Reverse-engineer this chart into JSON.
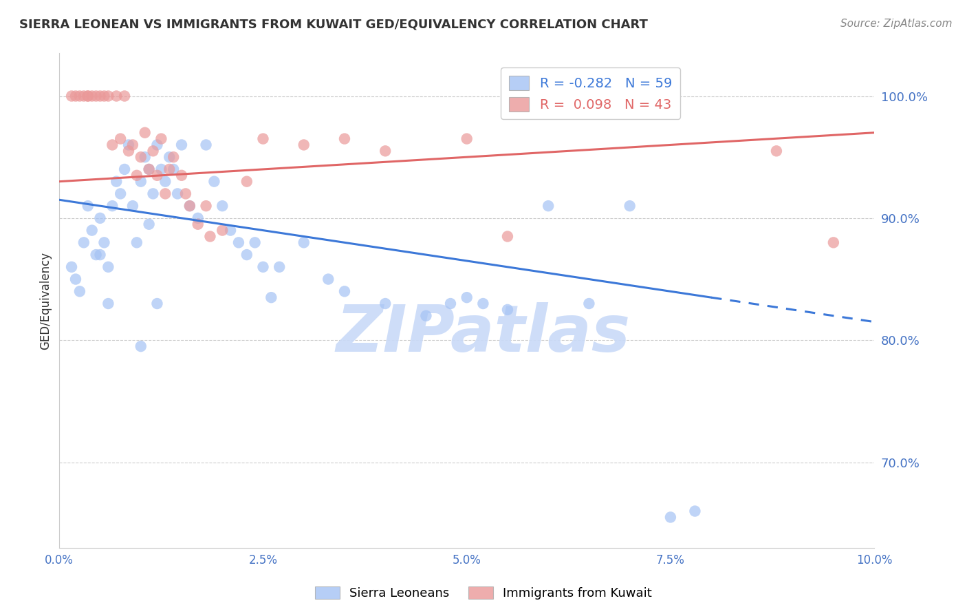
{
  "title": "SIERRA LEONEAN VS IMMIGRANTS FROM KUWAIT GED/EQUIVALENCY CORRELATION CHART",
  "source": "Source: ZipAtlas.com",
  "ylabel": "GED/Equivalency",
  "legend_label_blue": "Sierra Leoneans",
  "legend_label_pink": "Immigrants from Kuwait",
  "R_blue": -0.282,
  "N_blue": 59,
  "R_pink": 0.098,
  "N_pink": 43,
  "xlim": [
    0.0,
    10.0
  ],
  "ylim": [
    63.0,
    103.5
  ],
  "yticks": [
    70.0,
    80.0,
    90.0,
    100.0
  ],
  "xticks": [
    0.0,
    2.5,
    5.0,
    7.5,
    10.0
  ],
  "blue_color": "#a4c2f4",
  "pink_color": "#ea9999",
  "blue_line_color": "#3c78d8",
  "pink_line_color": "#e06666",
  "axis_color": "#4472c4",
  "grid_color": "#cccccc",
  "background_color": "#ffffff",
  "watermark": "ZIPatlas",
  "watermark_color": "#c9daf8",
  "blue_line_x0": 0.0,
  "blue_line_y0": 91.5,
  "blue_line_x1": 8.0,
  "blue_line_y1": 83.5,
  "blue_dash_x0": 8.0,
  "blue_dash_y0": 83.5,
  "blue_dash_x1": 10.0,
  "blue_dash_y1": 81.5,
  "pink_line_x0": 0.0,
  "pink_line_y0": 93.0,
  "pink_line_x1": 10.0,
  "pink_line_y1": 97.0,
  "blue_points_x": [
    0.15,
    0.2,
    0.25,
    0.3,
    0.35,
    0.4,
    0.45,
    0.5,
    0.55,
    0.6,
    0.65,
    0.7,
    0.75,
    0.8,
    0.85,
    0.9,
    0.95,
    1.0,
    1.05,
    1.1,
    1.15,
    1.2,
    1.25,
    1.3,
    1.35,
    1.4,
    1.45,
    1.5,
    1.6,
    1.7,
    1.8,
    1.9,
    2.0,
    2.1,
    2.2,
    2.4,
    2.5,
    2.7,
    3.0,
    3.3,
    3.5,
    4.0,
    4.5,
    4.8,
    5.0,
    5.2,
    5.5,
    6.0,
    6.5,
    7.0,
    7.5,
    2.3,
    2.6,
    0.5,
    0.6,
    1.0,
    1.1,
    1.2,
    7.8
  ],
  "blue_points_y": [
    86.0,
    85.0,
    84.0,
    88.0,
    91.0,
    89.0,
    87.0,
    90.0,
    88.0,
    86.0,
    91.0,
    93.0,
    92.0,
    94.0,
    96.0,
    91.0,
    88.0,
    93.0,
    95.0,
    94.0,
    92.0,
    96.0,
    94.0,
    93.0,
    95.0,
    94.0,
    92.0,
    96.0,
    91.0,
    90.0,
    96.0,
    93.0,
    91.0,
    89.0,
    88.0,
    88.0,
    86.0,
    86.0,
    88.0,
    85.0,
    84.0,
    83.0,
    82.0,
    83.0,
    83.5,
    83.0,
    82.5,
    91.0,
    83.0,
    91.0,
    65.5,
    87.0,
    83.5,
    87.0,
    83.0,
    79.5,
    89.5,
    83.0,
    66.0
  ],
  "pink_points_x": [
    0.15,
    0.2,
    0.3,
    0.35,
    0.4,
    0.5,
    0.6,
    0.7,
    0.75,
    0.8,
    0.9,
    1.0,
    1.1,
    1.2,
    1.3,
    1.4,
    1.5,
    1.6,
    1.7,
    1.8,
    2.0,
    2.3,
    2.5,
    3.0,
    3.5,
    4.0,
    5.0,
    5.5,
    8.8,
    0.25,
    0.35,
    0.45,
    0.55,
    0.65,
    0.85,
    0.95,
    1.05,
    1.15,
    1.25,
    1.35,
    1.55,
    1.85,
    9.5
  ],
  "pink_points_y": [
    100.0,
    100.0,
    100.0,
    100.0,
    100.0,
    100.0,
    100.0,
    100.0,
    96.5,
    100.0,
    96.0,
    95.0,
    94.0,
    93.5,
    92.0,
    95.0,
    93.5,
    91.0,
    89.5,
    91.0,
    89.0,
    93.0,
    96.5,
    96.0,
    96.5,
    95.5,
    96.5,
    88.5,
    95.5,
    100.0,
    100.0,
    100.0,
    100.0,
    96.0,
    95.5,
    93.5,
    97.0,
    95.5,
    96.5,
    94.0,
    92.0,
    88.5,
    88.0
  ]
}
